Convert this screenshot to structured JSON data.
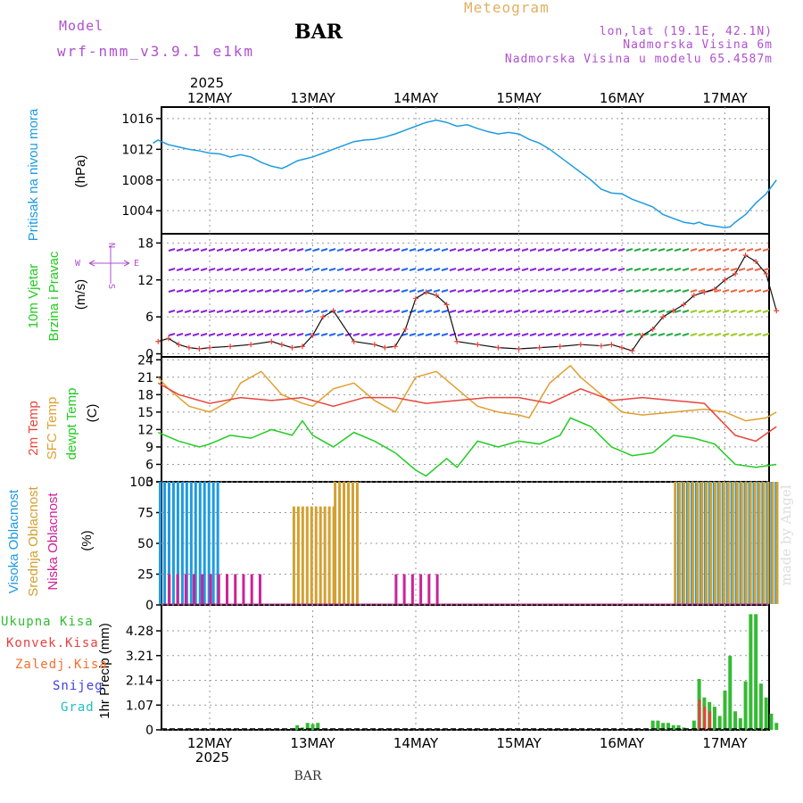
{
  "header": {
    "model_label": "Model",
    "model_name": "wrf-nmm_v3.9.1 e1km",
    "station": "BAR",
    "meteogram": "Meteogram",
    "lonlat": "lon,lat (19.1E, 42.1N)",
    "elev": "Nadmorska Visina 6m",
    "elev_model": "Nadmorska Visina u modelu 65.4587m",
    "year_top": "2025",
    "year_bottom": "2025",
    "footer_station": "BAR",
    "credit": "made by Angel"
  },
  "colors": {
    "pressure": "#1e9be0",
    "temp2m": "#e8453c",
    "sfc": "#e0a030",
    "dewpt": "#22cc22",
    "high": "#1e9be0",
    "mid": "#d4a030",
    "low": "#cc2299",
    "total": "#33bb33",
    "conv": "#e84040",
    "frozen": "#f07030",
    "snow": "#4040e0",
    "hail": "#20c0c0",
    "compass": "#b050d0",
    "wind_title": "#22cc22",
    "purple_text": "#b050d0",
    "meteogram_text": "#e0b060"
  },
  "panel_labels": {
    "pressure": [
      "Pritisak na nivou mora",
      "(hPa)"
    ],
    "wind": [
      "10m Vjetar",
      "Brzina i Pravac",
      "(m/s)"
    ],
    "temp": [
      "2m Temp",
      "SFC Temp",
      "dewpt Temp",
      "(C)"
    ],
    "cloud": [
      "Visoka Oblacnost",
      "Srednja Oblacnost",
      "Niska Oblacnost",
      "(%)"
    ],
    "precip": [
      "1hr Precip (mm)"
    ]
  },
  "compass": {
    "n": "N",
    "s": "S",
    "w": "W",
    "e": "E"
  },
  "precip_legend": [
    "Ukupna Kisa",
    "Konvek.Kisa",
    "Zaledj.Kisa",
    "Snijeg",
    "Grad"
  ],
  "chart_data": [
    {
      "type": "line",
      "panel": "pressure",
      "x_days": [
        "12MAY",
        "13MAY",
        "14MAY",
        "15MAY",
        "16MAY",
        "17MAY"
      ],
      "ylim": [
        1001,
        1017.5
      ],
      "yticks": [
        "1004",
        "1008",
        "1012",
        "1016"
      ],
      "series": [
        {
          "name": "Pritisak na nivou mora",
          "x": [
            -0.55,
            -0.5,
            -0.4,
            -0.3,
            -0.2,
            -0.1,
            0,
            0.1,
            0.2,
            0.3,
            0.4,
            0.5,
            0.6,
            0.7,
            0.75,
            0.85,
            1.0,
            1.1,
            1.2,
            1.3,
            1.4,
            1.5,
            1.6,
            1.7,
            1.8,
            1.9,
            2.0,
            2.1,
            2.2,
            2.3,
            2.4,
            2.5,
            2.6,
            2.7,
            2.8,
            2.9,
            3.0,
            3.1,
            3.2,
            3.3,
            3.4,
            3.5,
            3.6,
            3.7,
            3.8,
            3.9,
            4.0,
            4.1,
            4.2,
            4.3,
            4.4,
            4.5,
            4.6,
            4.7,
            4.75,
            4.8,
            4.9,
            5.0,
            5.05,
            5.1,
            5.2,
            5.3,
            5.4,
            5.5
          ],
          "values": [
            1012.8,
            1013.2,
            1012.6,
            1012.3,
            1012.0,
            1011.8,
            1011.5,
            1011.4,
            1011.0,
            1011.3,
            1011.0,
            1010.3,
            1009.8,
            1009.5,
            1009.8,
            1010.5,
            1011.0,
            1011.5,
            1012.0,
            1012.5,
            1013.0,
            1013.2,
            1013.3,
            1013.6,
            1014.0,
            1014.5,
            1015.0,
            1015.5,
            1015.8,
            1015.5,
            1015.0,
            1015.2,
            1014.7,
            1014.3,
            1014.0,
            1014.2,
            1014.0,
            1013.3,
            1012.8,
            1012.0,
            1011.0,
            1010.0,
            1009.0,
            1008.0,
            1006.8,
            1006.3,
            1006.2,
            1005.5,
            1005.0,
            1004.5,
            1003.5,
            1003.0,
            1002.5,
            1002.3,
            1002.5,
            1002.2,
            1002.0,
            1001.8,
            1001.9,
            1002.5,
            1003.5,
            1005.0,
            1006.2,
            1008.0
          ]
        }
      ]
    },
    {
      "type": "line",
      "panel": "wind",
      "ylim": [
        -0.5,
        19.5
      ],
      "yticks": [
        "0",
        "6",
        "12",
        "18"
      ],
      "series": [
        {
          "name": "wind speed",
          "x": [
            -0.5,
            -0.4,
            -0.3,
            -0.2,
            -0.1,
            0,
            0.2,
            0.4,
            0.6,
            0.7,
            0.8,
            0.9,
            1.0,
            1.1,
            1.2,
            1.4,
            1.6,
            1.7,
            1.8,
            1.9,
            2.0,
            2.1,
            2.2,
            2.3,
            2.4,
            2.6,
            2.8,
            3.0,
            3.2,
            3.4,
            3.6,
            3.8,
            3.9,
            4.0,
            4.1,
            4.2,
            4.3,
            4.4,
            4.5,
            4.6,
            4.7,
            4.8,
            4.9,
            5.0,
            5.1,
            5.2,
            5.3,
            5.4,
            5.5
          ],
          "values": [
            2,
            2.5,
            1.5,
            1,
            0.8,
            1,
            1.2,
            1.5,
            2,
            1.5,
            1,
            1.2,
            3,
            6,
            7,
            2,
            1.5,
            1,
            1.2,
            4,
            9,
            10,
            9.5,
            8,
            2,
            1.5,
            1,
            0.8,
            1,
            1.2,
            1.5,
            1.3,
            1.5,
            1,
            0.5,
            3,
            4,
            6,
            7,
            8,
            9.5,
            10,
            10.5,
            12,
            13,
            16,
            15,
            13,
            7
          ]
        }
      ]
    },
    {
      "type": "line",
      "panel": "temp",
      "ylim": [
        3,
        24.5
      ],
      "yticks": [
        "3",
        "6",
        "9",
        "12",
        "15",
        "18",
        "21",
        "24"
      ],
      "series": [
        {
          "name": "2m Temp",
          "x": [
            -0.5,
            -0.3,
            0,
            0.3,
            0.6,
            0.9,
            1.2,
            1.5,
            1.8,
            2.1,
            2.4,
            2.7,
            3.0,
            3.3,
            3.6,
            3.9,
            4.2,
            4.5,
            4.8,
            5.1,
            5.3,
            5.5
          ],
          "values": [
            20,
            18,
            16.5,
            17.5,
            17,
            17.5,
            16,
            17.5,
            17.5,
            16.5,
            17,
            17.5,
            17.5,
            16.5,
            19,
            17,
            17.5,
            17,
            16.5,
            11,
            10,
            12.5
          ]
        },
        {
          "name": "SFC Temp",
          "x": [
            -0.5,
            -0.4,
            -0.2,
            0,
            0.2,
            0.3,
            0.5,
            0.7,
            0.9,
            1.0,
            1.2,
            1.4,
            1.6,
            1.8,
            2.0,
            2.2,
            2.4,
            2.6,
            2.8,
            3.0,
            3.1,
            3.3,
            3.5,
            3.6,
            3.8,
            4.0,
            4.2,
            4.5,
            4.8,
            5.0,
            5.2,
            5.4,
            5.5
          ],
          "values": [
            21,
            19,
            16,
            15,
            17,
            20,
            22,
            18,
            16.5,
            16,
            19,
            20,
            17,
            15,
            21,
            22,
            19,
            16,
            15,
            14.5,
            14,
            20,
            23,
            21,
            18,
            15,
            14.5,
            15,
            15.5,
            15,
            13.5,
            14,
            15
          ]
        },
        {
          "name": "dewpt Temp",
          "x": [
            -0.5,
            -0.3,
            -0.1,
            0,
            0.2,
            0.4,
            0.6,
            0.8,
            0.9,
            1.0,
            1.2,
            1.4,
            1.6,
            1.8,
            2.0,
            2.1,
            2.3,
            2.4,
            2.6,
            2.8,
            3.0,
            3.2,
            3.4,
            3.5,
            3.7,
            3.9,
            4.1,
            4.3,
            4.5,
            4.7,
            4.9,
            5.1,
            5.3,
            5.5
          ],
          "values": [
            11.5,
            10,
            9,
            9.5,
            11,
            10.5,
            12,
            11,
            13.5,
            11,
            9,
            11.5,
            10,
            8,
            5,
            4,
            7,
            5.5,
            10,
            9,
            10,
            9.5,
            11,
            14,
            12.5,
            9,
            7.5,
            8,
            11,
            10.5,
            9.5,
            6,
            5.5,
            6
          ]
        }
      ]
    },
    {
      "type": "bar",
      "panel": "cloud",
      "ylim": [
        0,
        100
      ],
      "yticks": [
        "0",
        "25",
        "50",
        "75",
        "100"
      ],
      "series": [
        {
          "name": "Visoka Oblacnost",
          "ranges": [
            [
              -0.48,
              0.08,
              100
            ]
          ],
          "extra": [
            [
              4.55,
              5.5,
              100
            ]
          ]
        },
        {
          "name": "Srednja Oblacnost",
          "ranges": [
            [
              0.8,
              1.2,
              80
            ],
            [
              1.2,
              1.45,
              100
            ]
          ],
          "extra": [
            [
              4.5,
              5.5,
              100
            ]
          ]
        },
        {
          "name": "Niska Oblacnost",
          "ranges": [
            [
              -0.4,
              0.5,
              25
            ],
            [
              1.8,
              2.2,
              25
            ]
          ]
        }
      ]
    },
    {
      "type": "bar",
      "panel": "precip",
      "ylim": [
        0,
        5.4
      ],
      "yticks": [
        "0",
        "1.07",
        "2.14",
        "3.21",
        "4.28"
      ],
      "series": [
        {
          "name": "Ukupna Kisa",
          "x": [
            0.85,
            0.9,
            0.95,
            1.0,
            1.05,
            4.3,
            4.35,
            4.4,
            4.45,
            4.5,
            4.55,
            4.6,
            4.7,
            4.75,
            4.8,
            4.85,
            4.9,
            4.95,
            5.0,
            5.05,
            5.1,
            5.15,
            5.2,
            5.25,
            5.3,
            5.35,
            5.4,
            5.45,
            5.5
          ],
          "values": [
            0.2,
            0.1,
            0.3,
            0.25,
            0.3,
            0.4,
            0.4,
            0.3,
            0.3,
            0.2,
            0.2,
            0.1,
            0.4,
            2.2,
            1.4,
            1.2,
            1.0,
            0.6,
            1.7,
            3.2,
            0.8,
            0.5,
            2.1,
            5.0,
            5.0,
            2.0,
            1.4,
            0.7,
            0.3
          ]
        },
        {
          "name": "Konvek.Kisa",
          "x": [
            4.75,
            4.8,
            4.85
          ],
          "values": [
            1.3,
            1.0,
            0.8
          ]
        }
      ]
    }
  ]
}
